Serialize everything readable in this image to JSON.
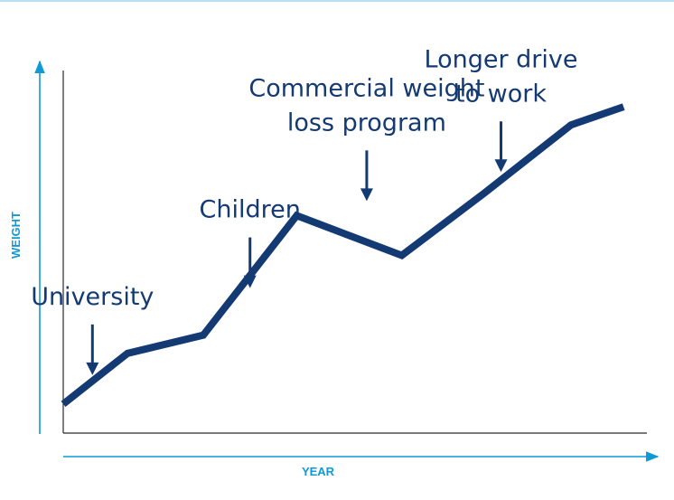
{
  "chart_data": {
    "type": "line",
    "title": "",
    "xlabel": "YEAR",
    "ylabel": "WEIGHT",
    "xlim": [
      0,
      10
    ],
    "ylim": [
      0,
      10
    ],
    "grid": false,
    "series": [
      {
        "x": [
          0,
          1.1,
          2.4,
          4.0,
          5.8,
          7.2,
          8.7,
          9.6
        ],
        "values": [
          0.8,
          2.2,
          2.7,
          6.0,
          4.9,
          6.6,
          8.5,
          9.0
        ]
      }
    ],
    "annotations": [
      {
        "lines": [
          "University"
        ],
        "x": 0.5,
        "y": 1.6
      },
      {
        "lines": [
          "Children"
        ],
        "x": 3.2,
        "y": 4.0
      },
      {
        "lines": [
          "Commercial weight",
          "loss program"
        ],
        "x": 5.2,
        "y": 6.4
      },
      {
        "lines": [
          "Longer drive",
          "to work"
        ],
        "x": 7.5,
        "y": 7.2
      }
    ]
  },
  "colors": {
    "line": "#143a73",
    "annotation": "#143a73",
    "axis_lines": "#2a2a2a",
    "axis_arrows": "#0f9ad6",
    "axis_titles": "#0f9ad6",
    "top_rule": "#b9dff2"
  }
}
